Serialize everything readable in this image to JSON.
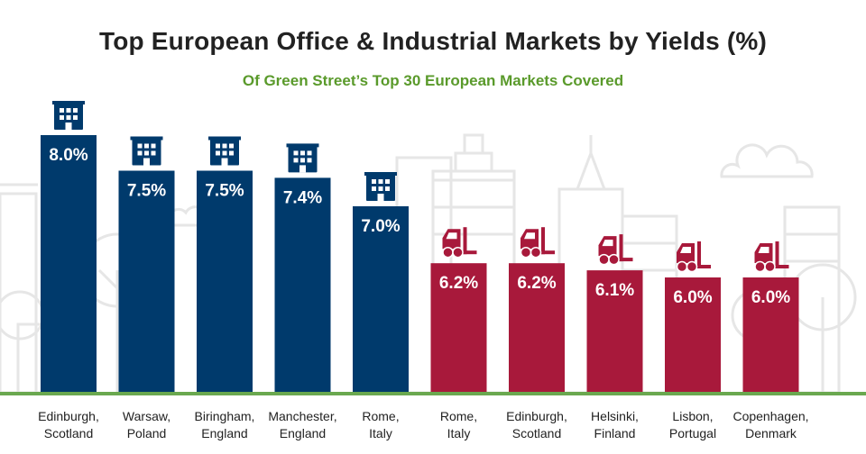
{
  "title": "Top European Office & Industrial Markets by Yields (%)",
  "subtitle": "Of Green Street’s Top 30 European Markets Covered",
  "colors": {
    "office": "#003a6c",
    "industrial": "#a8193b",
    "title": "#222222",
    "subtitle": "#5a9a2b",
    "baseline": "#6aa84f",
    "background_art": "#e4e4e4"
  },
  "chart_data": {
    "type": "bar",
    "title": "Top European Office & Industrial Markets by Yields (%)",
    "subtitle": "Of Green Street’s Top 30 European Markets Covered",
    "xlabel": "",
    "ylabel": "",
    "grid": false,
    "categories": [
      [
        "Edinburgh,",
        "Scotland"
      ],
      [
        "Warsaw,",
        "Poland"
      ],
      [
        "Biringham,",
        "England"
      ],
      [
        "Manchester,",
        "England"
      ],
      [
        "Rome,",
        "Italy"
      ],
      [
        "Rome,",
        "Italy"
      ],
      [
        "Edinburgh,",
        "Scotland"
      ],
      [
        "Helsinki,",
        "Finland"
      ],
      [
        "Lisbon,",
        "Portugal"
      ],
      [
        "Copenhagen,",
        "Denmark"
      ]
    ],
    "values": [
      8.0,
      7.5,
      7.5,
      7.4,
      7.0,
      6.2,
      6.2,
      6.1,
      6.0,
      6.0
    ],
    "labels": [
      "8.0%",
      "7.5%",
      "7.5%",
      "7.4%",
      "7.0%",
      "6.2%",
      "6.2%",
      "6.1%",
      "6.0%",
      "6.0%"
    ],
    "groups": [
      "office",
      "office",
      "office",
      "office",
      "office",
      "industrial",
      "industrial",
      "industrial",
      "industrial",
      "industrial"
    ],
    "icons": [
      "building-icon",
      "building-icon",
      "building-icon",
      "building-icon",
      "building-icon",
      "forklift-icon",
      "forklift-icon",
      "forklift-icon",
      "forklift-icon",
      "forklift-icon"
    ]
  }
}
